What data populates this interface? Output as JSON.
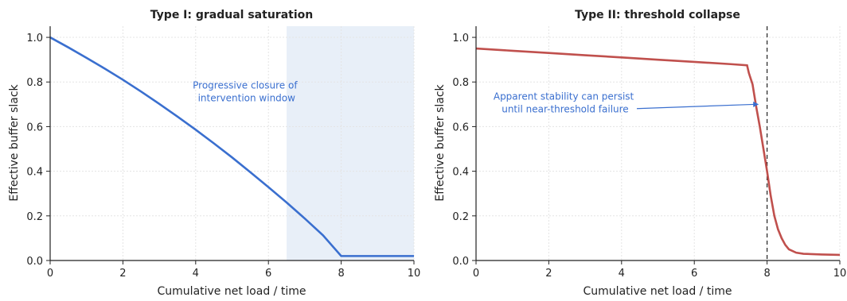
{
  "chart_data": [
    {
      "type": "line",
      "title": "Type I: gradual saturation",
      "xlabel": "Cumulative net load / time",
      "ylabel": "Effective buffer slack",
      "xlim": [
        0,
        10
      ],
      "ylim": [
        0,
        1.05
      ],
      "xticks": [
        0,
        2,
        4,
        6,
        8,
        10
      ],
      "yticks": [
        0.0,
        0.2,
        0.4,
        0.6,
        0.8,
        1.0
      ],
      "grid": true,
      "line_color": "#3a6fcf",
      "shaded_region": {
        "x": [
          6.5,
          10
        ],
        "color": "#e8eff8"
      },
      "annotation": {
        "text": [
          "Progressive closure of",
          "intervention window"
        ],
        "x": 5.4,
        "y": 0.77,
        "color": "#3a6fcf"
      },
      "series": [
        {
          "x": [
            0,
            0.5,
            1,
            1.5,
            2,
            2.5,
            3,
            3.5,
            4,
            4.5,
            5,
            5.5,
            6,
            6.5,
            7,
            7.5,
            8,
            8.5,
            9,
            9.5,
            10
          ],
          "values": [
            1.0,
            0.955,
            0.908,
            0.86,
            0.81,
            0.757,
            0.702,
            0.645,
            0.586,
            0.525,
            0.462,
            0.396,
            0.329,
            0.26,
            0.188,
            0.113,
            0.02,
            0.02,
            0.02,
            0.02,
            0.02
          ]
        }
      ]
    },
    {
      "type": "line",
      "title": "Type II: threshold collapse",
      "xlabel": "Cumulative net load / time",
      "ylabel": "Effective buffer slack",
      "xlim": [
        0,
        10
      ],
      "ylim": [
        0,
        1.05
      ],
      "xticks": [
        0,
        2,
        4,
        6,
        8,
        10
      ],
      "yticks": [
        0.0,
        0.2,
        0.4,
        0.6,
        0.8,
        1.0
      ],
      "grid": true,
      "line_color": "#c0504d",
      "vline": {
        "x": 8,
        "style": "dashed",
        "color": "#222222"
      },
      "annotation": {
        "text": [
          "Apparent stability can persist",
          "until near-threshold failure"
        ],
        "x": 2.45,
        "y": 0.72,
        "color": "#3a6fcf",
        "arrow_to": [
          7.75,
          0.7
        ]
      },
      "series": [
        {
          "x": [
            0,
            1,
            2,
            3,
            4,
            5,
            6,
            7,
            7.45,
            7.5,
            7.6,
            7.7,
            7.8,
            7.9,
            8.0,
            8.1,
            8.2,
            8.3,
            8.4,
            8.5,
            8.6,
            8.8,
            9.0,
            9.5,
            10
          ],
          "values": [
            0.95,
            0.94,
            0.93,
            0.92,
            0.91,
            0.9,
            0.89,
            0.88,
            0.875,
            0.84,
            0.79,
            0.69,
            0.6,
            0.5,
            0.4,
            0.29,
            0.2,
            0.14,
            0.1,
            0.07,
            0.05,
            0.035,
            0.03,
            0.027,
            0.025
          ]
        }
      ]
    }
  ]
}
